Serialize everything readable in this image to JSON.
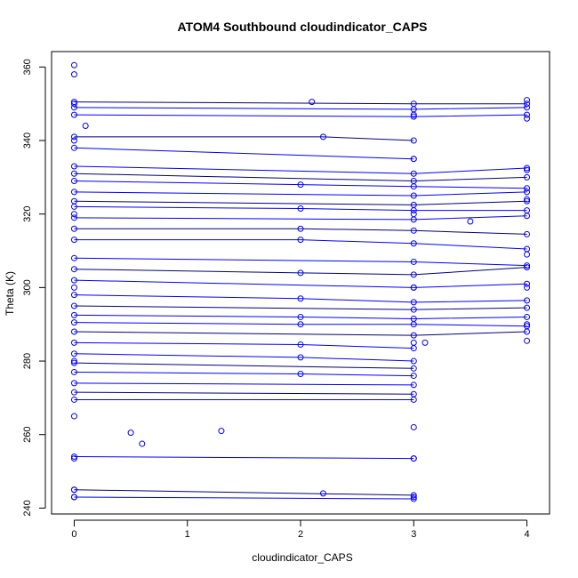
{
  "chart_data": {
    "type": "line",
    "title": "ATOM4 Southbound cloudindicator_CAPS",
    "xlabel": "cloudindicator_CAPS",
    "ylabel": "Theta (K)",
    "xlim": [
      -0.2,
      4.2
    ],
    "ylim": [
      238.4,
      364.2
    ],
    "xticks": [
      "0",
      "1",
      "2",
      "3",
      "4"
    ],
    "yticks": [
      "240",
      "260",
      "280",
      "300",
      "320",
      "340",
      "360"
    ],
    "grid": false,
    "series_color": "#0000ff",
    "series_description": "many profile lines, each drawn as a polyline connecting points (x = cloudindicator_CAPS, y = Theta) with open circle markers",
    "points": [
      {
        "x": 0,
        "y": 360.5
      },
      {
        "x": 0,
        "y": 358.0
      },
      {
        "x": 0,
        "y": 350.0
      },
      {
        "x": 0,
        "y": 340.0
      },
      {
        "x": 0,
        "y": 320.0
      },
      {
        "x": 0,
        "y": 300.0
      },
      {
        "x": 0,
        "y": 280.0
      },
      {
        "x": 0,
        "y": 265.0
      },
      {
        "x": 0,
        "y": 253.5
      },
      {
        "x": 0,
        "y": 245.0
      },
      {
        "x": 0,
        "y": 243.0
      },
      {
        "x": 0.1,
        "y": 344.0
      },
      {
        "x": 0.5,
        "y": 260.5
      },
      {
        "x": 0.6,
        "y": 257.5
      },
      {
        "x": 1.3,
        "y": 261.0
      },
      {
        "x": 2.1,
        "y": 350.5
      },
      {
        "x": 2.2,
        "y": 244.0
      },
      {
        "x": 3,
        "y": 347.0
      },
      {
        "x": 3,
        "y": 335.0
      },
      {
        "x": 3,
        "y": 320.0
      },
      {
        "x": 3,
        "y": 300.0
      },
      {
        "x": 3,
        "y": 285.0
      },
      {
        "x": 3,
        "y": 262.0
      },
      {
        "x": 3,
        "y": 253.5
      },
      {
        "x": 3,
        "y": 243.0
      },
      {
        "x": 3.1,
        "y": 285.0
      },
      {
        "x": 3.5,
        "y": 318.0
      },
      {
        "x": 4,
        "y": 351.0
      },
      {
        "x": 4,
        "y": 346.0
      },
      {
        "x": 4,
        "y": 332.0
      },
      {
        "x": 4,
        "y": 324.0
      },
      {
        "x": 4,
        "y": 309.0
      },
      {
        "x": 4,
        "y": 300.0
      },
      {
        "x": 4,
        "y": 290.0
      },
      {
        "x": 4,
        "y": 285.5
      }
    ],
    "profiles": [
      [
        [
          0,
          350.5
        ],
        [
          3,
          350.0
        ],
        [
          4,
          350.0
        ]
      ],
      [
        [
          0,
          349.0
        ],
        [
          3,
          348.5
        ],
        [
          4,
          349.0
        ]
      ],
      [
        [
          0,
          347.0
        ],
        [
          3,
          346.5
        ],
        [
          4,
          347.0
        ]
      ],
      [
        [
          0,
          341.0
        ],
        [
          2.2,
          341.0
        ],
        [
          3,
          340.0
        ]
      ],
      [
        [
          0,
          338.0
        ],
        [
          3,
          335.0
        ]
      ],
      [
        [
          0,
          333.0
        ],
        [
          3,
          331.0
        ],
        [
          4,
          332.5
        ]
      ],
      [
        [
          0,
          331.0
        ],
        [
          3,
          329.0
        ],
        [
          4,
          330.0
        ]
      ],
      [
        [
          0,
          329.0
        ],
        [
          2,
          328.0
        ],
        [
          3,
          327.5
        ],
        [
          4,
          327.0
        ]
      ],
      [
        [
          0,
          326.0
        ],
        [
          3,
          325.0
        ],
        [
          4,
          326.0
        ]
      ],
      [
        [
          0,
          323.5
        ],
        [
          3,
          322.5
        ],
        [
          4,
          323.5
        ]
      ],
      [
        [
          0,
          322.0
        ],
        [
          2,
          321.5
        ],
        [
          3,
          321.0
        ],
        [
          4,
          321.0
        ]
      ],
      [
        [
          0,
          319.0
        ],
        [
          3,
          318.5
        ],
        [
          4,
          319.5
        ]
      ],
      [
        [
          0,
          316.0
        ],
        [
          2,
          316.0
        ],
        [
          3,
          315.5
        ],
        [
          4,
          314.5
        ]
      ],
      [
        [
          0,
          313.0
        ],
        [
          2,
          313.0
        ],
        [
          3,
          312.0
        ],
        [
          4,
          310.5
        ]
      ],
      [
        [
          0,
          308.0
        ],
        [
          3,
          307.0
        ],
        [
          4,
          306.0
        ]
      ],
      [
        [
          0,
          305.0
        ],
        [
          2,
          304.0
        ],
        [
          3,
          303.5
        ],
        [
          4,
          305.5
        ]
      ],
      [
        [
          0,
          302.0
        ],
        [
          3,
          300.0
        ],
        [
          4,
          301.0
        ]
      ],
      [
        [
          0,
          298.0
        ],
        [
          2,
          297.0
        ],
        [
          3,
          296.0
        ],
        [
          4,
          296.5
        ]
      ],
      [
        [
          0,
          295.0
        ],
        [
          3,
          294.0
        ],
        [
          4,
          294.5
        ]
      ],
      [
        [
          0,
          292.5
        ],
        [
          2,
          292.0
        ],
        [
          3,
          291.5
        ],
        [
          4,
          292.0
        ]
      ],
      [
        [
          0,
          290.5
        ],
        [
          2,
          290.0
        ],
        [
          3,
          290.0
        ],
        [
          4,
          289.5
        ]
      ],
      [
        [
          0,
          288.0
        ],
        [
          3,
          287.0
        ],
        [
          4,
          288.0
        ]
      ],
      [
        [
          0,
          285.0
        ],
        [
          2,
          284.5
        ],
        [
          3,
          283.5
        ]
      ],
      [
        [
          0,
          282.0
        ],
        [
          2,
          281.0
        ],
        [
          3,
          280.0
        ]
      ],
      [
        [
          0,
          279.5
        ],
        [
          3,
          278.0
        ]
      ],
      [
        [
          0,
          277.0
        ],
        [
          2,
          276.5
        ],
        [
          3,
          276.0
        ]
      ],
      [
        [
          0,
          274.0
        ],
        [
          3,
          273.5
        ]
      ],
      [
        [
          0,
          271.5
        ],
        [
          3,
          271.0
        ]
      ],
      [
        [
          0,
          269.5
        ],
        [
          3,
          269.5
        ]
      ],
      [
        [
          0,
          254.0
        ],
        [
          3,
          253.5
        ]
      ],
      [
        [
          0,
          245.0
        ],
        [
          3,
          243.5
        ]
      ],
      [
        [
          0,
          243.0
        ],
        [
          3,
          242.5
        ]
      ]
    ]
  }
}
